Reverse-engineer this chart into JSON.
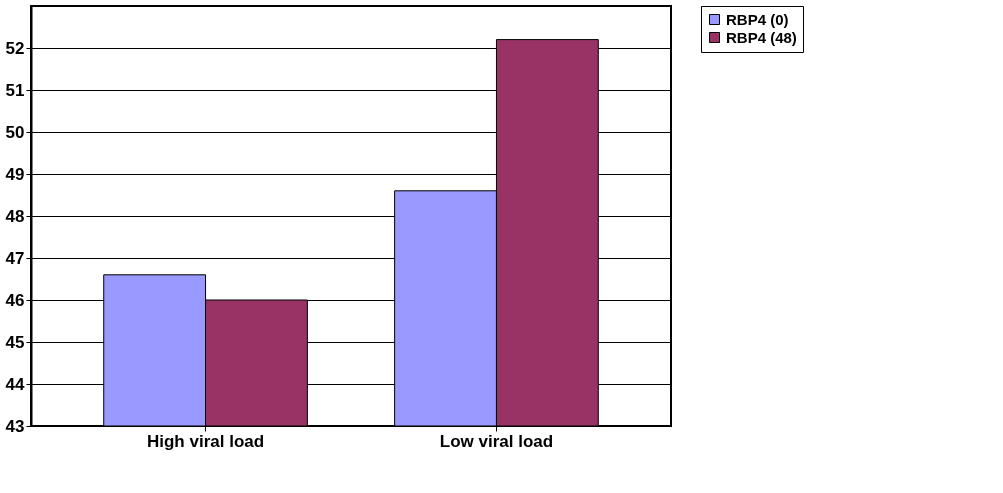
{
  "chart_data": {
    "type": "bar",
    "categories": [
      "High viral load",
      "Low viral load"
    ],
    "series": [
      {
        "name": "RBP4 (0)",
        "color": "#9999ff",
        "values": [
          46.6,
          48.6
        ]
      },
      {
        "name": "RBP4 (48)",
        "color": "#993366",
        "values": [
          46.0,
          52.2
        ]
      }
    ],
    "ylim": [
      43,
      53
    ],
    "yticks": [
      43,
      44,
      45,
      46,
      47,
      48,
      49,
      50,
      51,
      52
    ],
    "grid": "y",
    "legend": "top right"
  }
}
